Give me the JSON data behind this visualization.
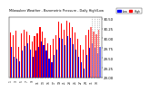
{
  "title": "Milwaukee Weather - Barometric Pressure - Daily High/Low",
  "ylim": [
    29.0,
    30.55
  ],
  "ybase": 29.0,
  "bar_width": 0.4,
  "high_color": "#ff0000",
  "low_color": "#0000ff",
  "background_color": "#ffffff",
  "legend_high": "High",
  "legend_low": "Low",
  "n_forecast": 4,
  "highs": [
    30.14,
    30.08,
    30.2,
    29.78,
    30.12,
    30.22,
    30.18,
    30.08,
    29.92,
    30.05,
    30.12,
    30.28,
    30.18,
    30.02,
    29.88,
    29.82,
    29.98,
    30.08,
    30.42,
    30.38,
    30.22,
    30.45,
    30.4,
    30.28,
    30.15,
    29.98,
    29.82,
    29.72,
    30.08,
    30.22,
    30.28,
    30.18,
    30.1,
    30.22
  ],
  "lows": [
    29.78,
    29.52,
    29.48,
    29.42,
    29.68,
    29.8,
    29.88,
    29.72,
    29.52,
    29.68,
    29.78,
    29.92,
    29.82,
    29.68,
    29.48,
    29.38,
    29.58,
    29.72,
    30.02,
    29.98,
    29.82,
    30.05,
    30.0,
    29.85,
    29.72,
    29.52,
    29.38,
    29.22,
    29.58,
    29.75,
    29.88,
    29.75,
    29.62,
    29.78
  ],
  "yticks": [
    29.0,
    29.25,
    29.5,
    29.75,
    30.0,
    30.25,
    30.5
  ],
  "ytick_labels": [
    "29.00",
    "29.25",
    "29.50",
    "29.75",
    "30.00",
    "30.25",
    "30.50"
  ]
}
